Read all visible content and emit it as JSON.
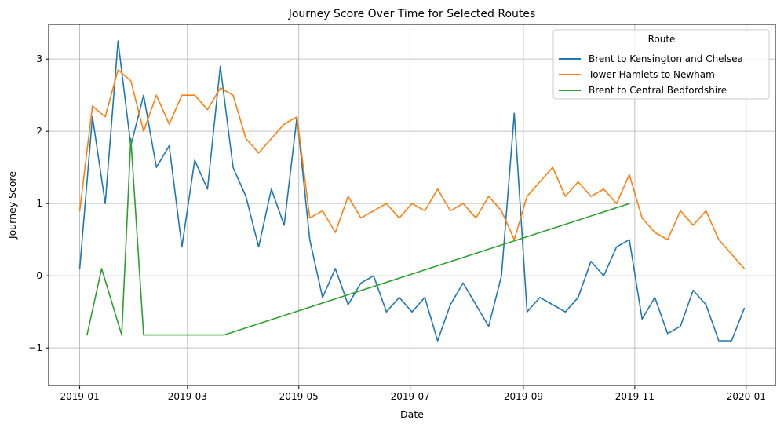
{
  "chart_data": {
    "type": "line",
    "title": "Journey Score Over Time for Selected Routes",
    "xlabel": "Date",
    "ylabel": "Journey Score",
    "x_ticks": [
      "2019-01",
      "2019-03",
      "2019-05",
      "2019-07",
      "2019-09",
      "2019-11",
      "2020-01"
    ],
    "y_ticks": [
      "−1",
      "0",
      "1",
      "2",
      "3"
    ],
    "xlim": [
      "2018-12-15",
      "2020-01-17"
    ],
    "ylim": [
      -1.52,
      3.48
    ],
    "grid": true,
    "legend": {
      "title": "Route",
      "placement": "top-right"
    },
    "series": [
      {
        "name": "Brent to Kensington and Chelsea",
        "color": "#1f77b4",
        "x": [
          "2019-01-01",
          "2019-01-08",
          "2019-01-15",
          "2019-01-22",
          "2019-01-29",
          "2019-02-05",
          "2019-02-12",
          "2019-02-19",
          "2019-02-26",
          "2019-03-05",
          "2019-03-12",
          "2019-03-19",
          "2019-03-26",
          "2019-04-02",
          "2019-04-09",
          "2019-04-16",
          "2019-04-23",
          "2019-04-30",
          "2019-05-07",
          "2019-05-14",
          "2019-05-21",
          "2019-05-28",
          "2019-06-04",
          "2019-06-11",
          "2019-06-18",
          "2019-06-25",
          "2019-07-02",
          "2019-07-09",
          "2019-07-16",
          "2019-07-23",
          "2019-07-30",
          "2019-08-06",
          "2019-08-13",
          "2019-08-20",
          "2019-08-27",
          "2019-09-03",
          "2019-09-10",
          "2019-09-17",
          "2019-09-24",
          "2019-10-01",
          "2019-10-08",
          "2019-10-15",
          "2019-10-22",
          "2019-10-29",
          "2019-11-05",
          "2019-11-12",
          "2019-11-19",
          "2019-11-26",
          "2019-12-03",
          "2019-12-10",
          "2019-12-17",
          "2019-12-24",
          "2019-12-31"
        ],
        "values": [
          0.1,
          2.2,
          1.0,
          3.25,
          1.8,
          2.5,
          1.5,
          1.8,
          0.4,
          1.6,
          1.2,
          2.9,
          1.5,
          1.1,
          0.4,
          1.2,
          0.7,
          2.2,
          0.5,
          -0.3,
          0.1,
          -0.4,
          -0.1,
          0.0,
          -0.5,
          -0.3,
          -0.5,
          -0.3,
          -0.9,
          -0.4,
          -0.1,
          -0.4,
          -0.7,
          0.0,
          2.25,
          -0.5,
          -0.3,
          -0.4,
          -0.5,
          -0.3,
          0.2,
          0.0,
          0.4,
          0.5,
          -0.6,
          -0.3,
          -0.8,
          -0.7,
          -0.2,
          -0.4,
          -0.9,
          -0.9,
          -0.45
        ]
      },
      {
        "name": "Tower Hamlets to Newham",
        "color": "#ff7f0e",
        "x": [
          "2019-01-01",
          "2019-01-08",
          "2019-01-15",
          "2019-01-22",
          "2019-01-29",
          "2019-02-05",
          "2019-02-12",
          "2019-02-19",
          "2019-02-26",
          "2019-03-05",
          "2019-03-12",
          "2019-03-19",
          "2019-03-26",
          "2019-04-02",
          "2019-04-09",
          "2019-04-16",
          "2019-04-23",
          "2019-04-30",
          "2019-05-07",
          "2019-05-14",
          "2019-05-21",
          "2019-05-28",
          "2019-06-04",
          "2019-06-11",
          "2019-06-18",
          "2019-06-25",
          "2019-07-02",
          "2019-07-09",
          "2019-07-16",
          "2019-07-23",
          "2019-07-30",
          "2019-08-06",
          "2019-08-13",
          "2019-08-20",
          "2019-08-27",
          "2019-09-03",
          "2019-09-10",
          "2019-09-17",
          "2019-09-24",
          "2019-10-01",
          "2019-10-08",
          "2019-10-15",
          "2019-10-22",
          "2019-10-29",
          "2019-11-05",
          "2019-11-12",
          "2019-11-19",
          "2019-11-26",
          "2019-12-03",
          "2019-12-10",
          "2019-12-17",
          "2019-12-24",
          "2019-12-31"
        ],
        "values": [
          0.9,
          2.35,
          2.2,
          2.85,
          2.7,
          2.0,
          2.5,
          2.1,
          2.5,
          2.5,
          2.3,
          2.6,
          2.5,
          1.9,
          1.7,
          1.9,
          2.1,
          2.2,
          0.8,
          0.9,
          0.6,
          1.1,
          0.8,
          0.9,
          1.0,
          0.8,
          1.0,
          0.9,
          1.2,
          0.9,
          1.0,
          0.8,
          1.1,
          0.9,
          0.5,
          1.1,
          1.3,
          1.5,
          1.1,
          1.3,
          1.1,
          1.2,
          1.0,
          1.4,
          0.8,
          0.6,
          0.5,
          0.9,
          0.7,
          0.9,
          0.5,
          0.3,
          0.1
        ]
      },
      {
        "name": "Brent to Central Bedfordshire",
        "color": "#2ca02c",
        "x": [
          "2019-01-05",
          "2019-01-13",
          "2019-01-24",
          "2019-01-29",
          "2019-02-05",
          "2019-03-21",
          "2019-10-29"
        ],
        "values": [
          -0.82,
          0.1,
          -0.82,
          1.9,
          -0.82,
          -0.82,
          1.0
        ]
      }
    ]
  }
}
